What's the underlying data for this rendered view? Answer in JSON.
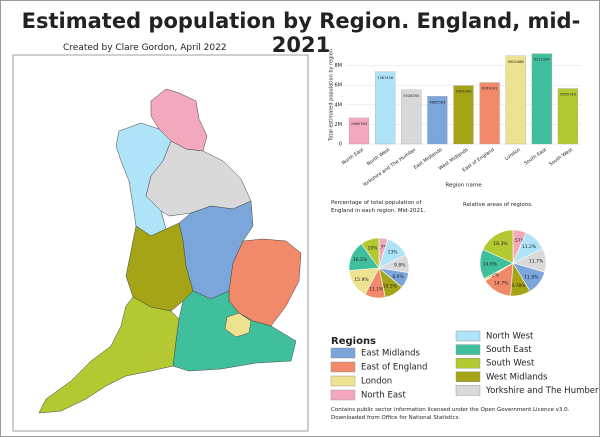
{
  "title": "Estimated population by Region. England, mid-2021",
  "subtitle": "Created by Clare Gordon, April 2022",
  "chart_data": [
    {
      "type": "bar",
      "y_label": "Total estimated population by region",
      "x_label": "Region name",
      "categories": [
        "North East",
        "North West",
        "Yorkshire and The Humber",
        "East Midlands",
        "West Midlands",
        "East of England",
        "London",
        "South East",
        "South West"
      ],
      "values": [
        2660763,
        7367456,
        5526350,
        4865583,
        5954240,
        6269161,
        9002488,
        9217265,
        5659143
      ],
      "colors": [
        "#f4a8bd",
        "#aee3f8",
        "#d9d9d9",
        "#7aa6dc",
        "#a5a417",
        "#f08a6a",
        "#ede28f",
        "#3fbf9c",
        "#b4c832"
      ],
      "ylim": [
        0,
        10000000
      ],
      "yticks": [
        0,
        {
          "value": 2000000,
          "label": "2M"
        },
        {
          "value": 4000000,
          "label": "4M"
        },
        {
          "value": 6000000,
          "label": "6M"
        },
        {
          "value": 8000000,
          "label": "8M"
        }
      ],
      "grid": true
    },
    {
      "type": "pie",
      "title": "Percentage of total population of England in each region. Mid-2021.",
      "categories": [
        "North East",
        "North West",
        "Yorkshire and The Humber",
        "East Midlands",
        "West Midlands",
        "East of England",
        "London",
        "South East",
        "South West"
      ],
      "values": [
        4.7,
        13,
        9.8,
        8.6,
        10.5,
        11.1,
        15.9,
        16.3,
        10
      ],
      "value_labels": [
        "4.7%",
        "13%",
        "9.8%",
        "8.6%",
        "10.5%",
        "11.1%",
        "15.9%",
        "16.3%",
        "10%"
      ],
      "colors": [
        "#f4a8bd",
        "#aee3f8",
        "#d9d9d9",
        "#7aa6dc",
        "#a5a417",
        "#f08a6a",
        "#ede28f",
        "#3fbf9c",
        "#b4c832"
      ]
    },
    {
      "type": "pie",
      "title": "Relative areas of regions.",
      "categories": [
        "North East",
        "North West",
        "Yorkshire and The Humber",
        "East Midlands",
        "West Midlands",
        "East of England",
        "London",
        "South East",
        "South West"
      ],
      "values": [
        6.57,
        11.2,
        11.7,
        11.9,
        9.78,
        14.7,
        1.2,
        14.6,
        18.3
      ],
      "value_labels": [
        "6.57%",
        "11.2%",
        "11.7%",
        "11.9%",
        "9.78%",
        "14.7%",
        "1.2%",
        "14.6%",
        "18.3%"
      ],
      "colors": [
        "#f4a8bd",
        "#aee3f8",
        "#d9d9d9",
        "#7aa6dc",
        "#a5a417",
        "#f08a6a",
        "#ede28f",
        "#3fbf9c",
        "#b4c832"
      ]
    }
  ],
  "legend": {
    "title": "Regions",
    "entries": [
      {
        "name": "East Midlands",
        "color": "#7aa6dc"
      },
      {
        "name": "East of England",
        "color": "#f08a6a"
      },
      {
        "name": "London",
        "color": "#ede28f"
      },
      {
        "name": "North East",
        "color": "#f4a8bd"
      },
      {
        "name": "North West",
        "color": "#aee3f8"
      },
      {
        "name": "South East",
        "color": "#3fbf9c"
      },
      {
        "name": "South West",
        "color": "#b4c832"
      },
      {
        "name": "West Midlands",
        "color": "#a5a417"
      },
      {
        "name": "Yorkshire and The Humber",
        "color": "#d9d9d9"
      }
    ]
  },
  "footnote": "Contains public sector information licensed under the Open Government Licence v3.0. Downloaded from Office for National Statistics."
}
